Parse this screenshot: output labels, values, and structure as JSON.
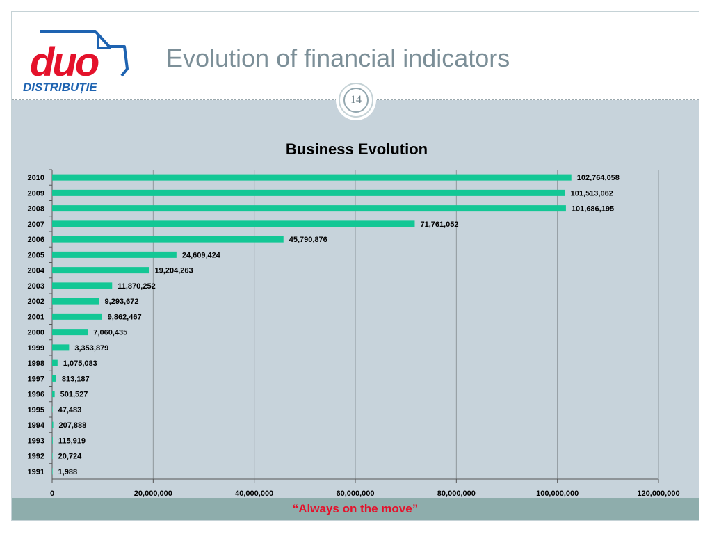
{
  "header": {
    "title": "Evolution of financial indicators",
    "page_number": "14",
    "logo_main": "duo",
    "logo_sub": "DISTRIBUȚIE"
  },
  "footer": {
    "slogan": "“Always on the move”"
  },
  "colors": {
    "bar": "#13c795",
    "background": "#c7d3db",
    "footer": "#8eadac",
    "logo_red": "#e4122b",
    "logo_blue": "#1e63b1",
    "title": "#7c8f98"
  },
  "chart_data": {
    "type": "bar",
    "orientation": "horizontal",
    "title": "Business Evolution",
    "xlabel": "",
    "ylabel": "",
    "categories": [
      "2010",
      "2009",
      "2008",
      "2007",
      "2006",
      "2005",
      "2004",
      "2003",
      "2002",
      "2001",
      "2000",
      "1999",
      "1998",
      "1997",
      "1996",
      "1995",
      "1994",
      "1993",
      "1992",
      "1991"
    ],
    "values": [
      102764058,
      101513062,
      101686195,
      71761052,
      45790876,
      24609424,
      19204263,
      11870252,
      9293672,
      9862467,
      7060435,
      3353879,
      1075083,
      813187,
      501527,
      47483,
      207888,
      115919,
      20724,
      1988
    ],
    "value_labels": [
      "102,764,058",
      "101,513,062",
      "101,686,195",
      "71,761,052",
      "45,790,876",
      "24,609,424",
      "19,204,263",
      "11,870,252",
      "9,293,672",
      "9,862,467",
      "7,060,435",
      "3,353,879",
      "1,075,083",
      "813,187",
      "501,527",
      "47,483",
      "207,888",
      "115,919",
      "20,724",
      "1,988"
    ],
    "xlim": [
      0,
      120000000
    ],
    "xticks": [
      0,
      20000000,
      40000000,
      60000000,
      80000000,
      100000000,
      120000000
    ],
    "xtick_labels": [
      "0",
      "20,000,000",
      "40,000,000",
      "60,000,000",
      "80,000,000",
      "100,000,000",
      "120,000,000"
    ],
    "grid": true,
    "legend": "none"
  }
}
